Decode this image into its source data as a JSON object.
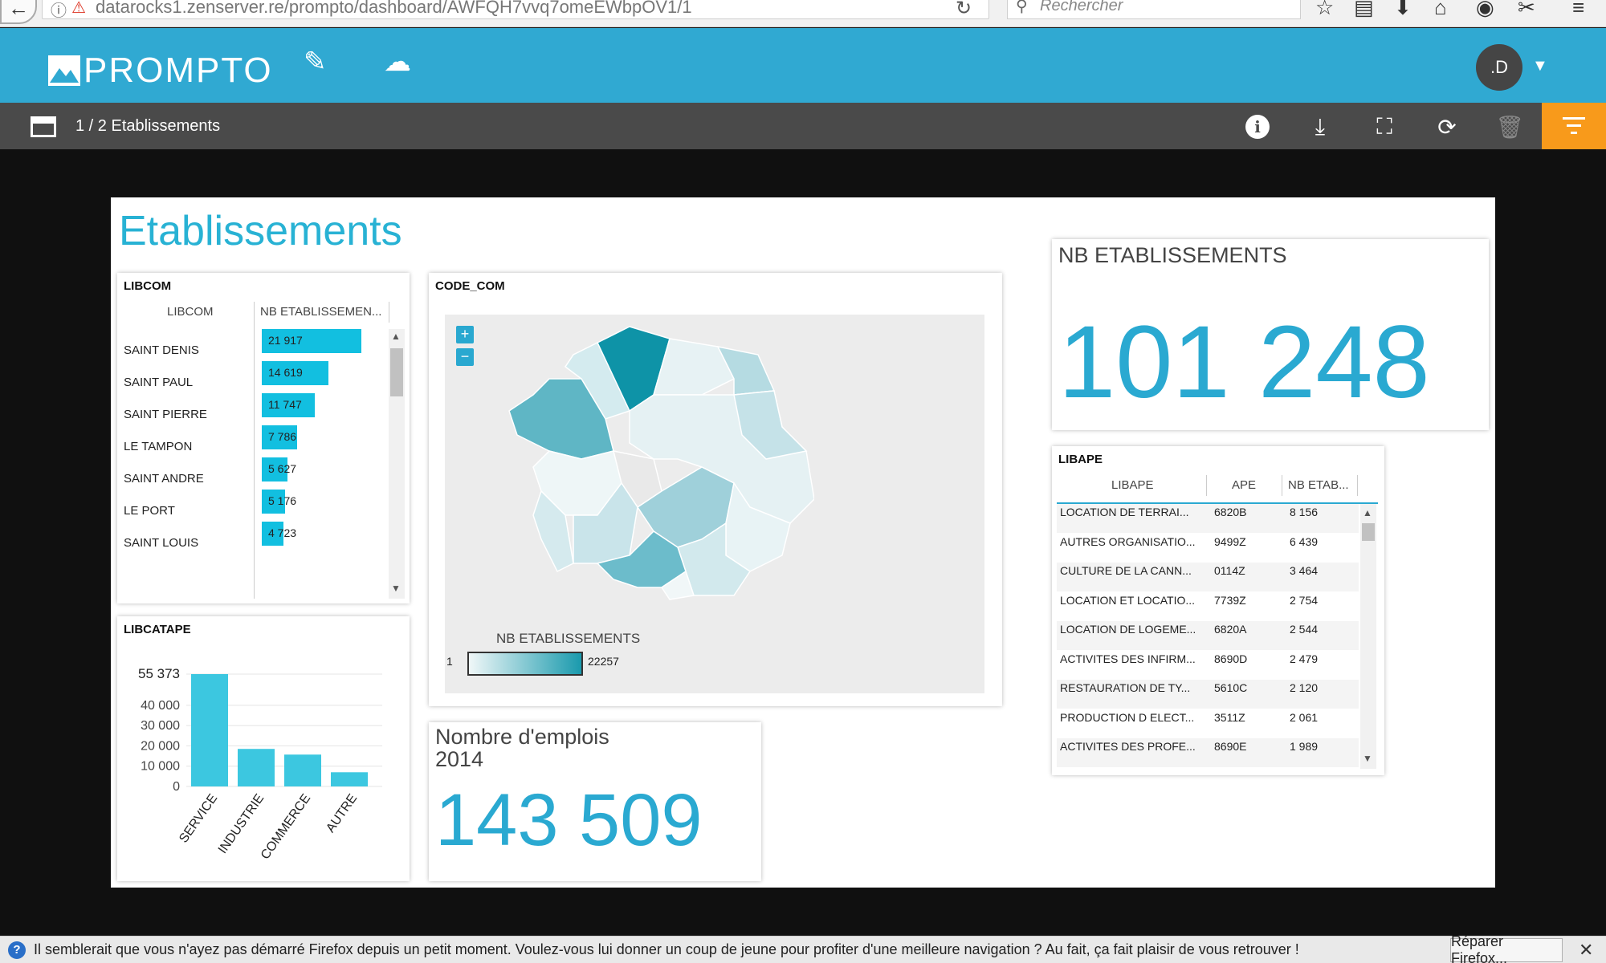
{
  "browser": {
    "url": "datarocks1.zenserver.re/prompto/dashboard/AWFQH7vvq7omeEWbpOV1/1",
    "search_placeholder": "Rechercher"
  },
  "header": {
    "logo_text": "PROMPTO",
    "avatar_initials": ".D",
    "brand_color": "#30a9d2"
  },
  "subbar": {
    "page_label": "1 / 2 Etablissements",
    "filter_color": "#f89a1b"
  },
  "board": {
    "title": "Etablissements"
  },
  "libcom": {
    "title": "LIBCOM",
    "columns": [
      "LIBCOM",
      "NB ETABLISSEMEN..."
    ],
    "rows": [
      {
        "name": "SAINT DENIS",
        "value": "21 917",
        "num": 21917
      },
      {
        "name": "SAINT PAUL",
        "value": "14 619",
        "num": 14619
      },
      {
        "name": "SAINT PIERRE",
        "value": "11 747",
        "num": 11747
      },
      {
        "name": "LE TAMPON",
        "value": "7 786",
        "num": 7786
      },
      {
        "name": "SAINT ANDRE",
        "value": "5 627",
        "num": 5627
      },
      {
        "name": "LE PORT",
        "value": "5 176",
        "num": 5176
      },
      {
        "name": "SAINT LOUIS",
        "value": "4 723",
        "num": 4723
      }
    ],
    "bar_color": "#12bfe0"
  },
  "libcatape": {
    "title": "LIBCATAPE",
    "chart_data": {
      "type": "bar",
      "categories": [
        "SERVICE",
        "INDUSTRIE",
        "COMMERCE",
        "AUTRE"
      ],
      "values": [
        55373,
        18500,
        15700,
        7000
      ],
      "ytick_labels": [
        "55 373",
        "40 000",
        "30 000",
        "20 000",
        "10 000",
        "0"
      ],
      "ytick_values": [
        55373,
        40000,
        30000,
        20000,
        10000,
        0
      ],
      "ylim": [
        0,
        55373
      ],
      "bar_color": "#3cc7e0"
    }
  },
  "codecom": {
    "title": "CODE_COM",
    "zoom_in": "+",
    "zoom_out": "−",
    "legend_title": "NB ETABLISSEMENTS",
    "legend_min": "1",
    "legend_max": "22257"
  },
  "emplois": {
    "title": "Nombre d'emplois 2014",
    "value": "143 509"
  },
  "nbetab": {
    "title": "NB ETABLISSEMENTS",
    "value": "101 248"
  },
  "libape": {
    "title": "LIBAPE",
    "columns": [
      "LIBAPE",
      "APE",
      "NB ETAB..."
    ],
    "rows": [
      {
        "libape": "LOCATION DE TERRAI...",
        "ape": "6820B",
        "nb": "8 156"
      },
      {
        "libape": "AUTRES ORGANISATIO...",
        "ape": "9499Z",
        "nb": "6 439"
      },
      {
        "libape": "CULTURE DE LA CANN...",
        "ape": "0114Z",
        "nb": "3 464"
      },
      {
        "libape": "LOCATION ET LOCATIO...",
        "ape": "7739Z",
        "nb": "2 754"
      },
      {
        "libape": "LOCATION DE LOGEME...",
        "ape": "6820A",
        "nb": "2 544"
      },
      {
        "libape": "ACTIVITES DES INFIRM...",
        "ape": "8690D",
        "nb": "2 479"
      },
      {
        "libape": "RESTAURATION DE TY...",
        "ape": "5610C",
        "nb": "2 120"
      },
      {
        "libape": "PRODUCTION D ELECT...",
        "ape": "3511Z",
        "nb": "2 061"
      },
      {
        "libape": "ACTIVITES DES PROFE...",
        "ape": "8690E",
        "nb": "1 989"
      }
    ]
  },
  "notification": {
    "text": "Il semblerait que vous n'ayez pas démarré Firefox depuis un petit moment. Voulez-vous lui donner un coup de jeune pour profiter d'une meilleure navigation ? Au fait, ça fait plaisir de vous retrouver !",
    "button": "Réparer Firefox..."
  }
}
